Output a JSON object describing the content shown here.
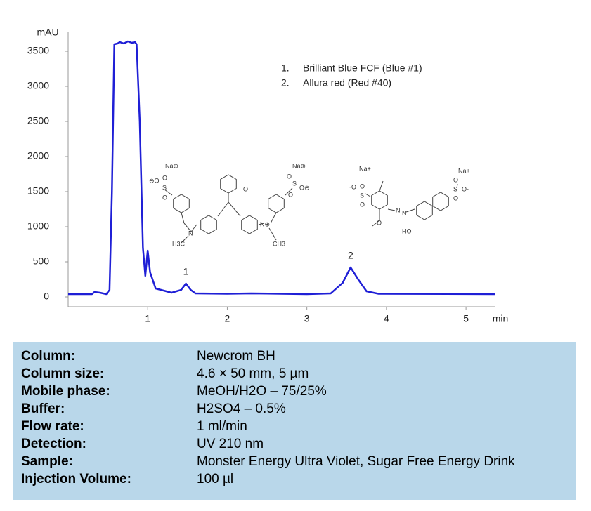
{
  "chart_data": {
    "type": "line",
    "ylabel": "mAU",
    "xlabel": "min",
    "x": [
      0,
      0.3,
      0.33,
      0.4,
      0.48,
      0.52,
      0.55,
      0.58,
      0.62,
      0.65,
      0.7,
      0.75,
      0.8,
      0.84,
      0.86,
      0.9,
      0.94,
      0.97,
      1.0,
      1.03,
      1.1,
      1.3,
      1.42,
      1.48,
      1.54,
      1.6,
      2.0,
      2.3,
      3.0,
      3.3,
      3.45,
      3.55,
      3.65,
      3.75,
      3.9,
      5.37
    ],
    "values": [
      40,
      40,
      70,
      60,
      40,
      100,
      1500,
      3600,
      3610,
      3630,
      3610,
      3640,
      3620,
      3630,
      3600,
      2500,
      700,
      300,
      660,
      350,
      120,
      60,
      100,
      190,
      100,
      50,
      45,
      50,
      40,
      50,
      200,
      420,
      240,
      80,
      45,
      40
    ],
    "color": "#1f1fd6",
    "xlim": [
      0,
      5.37
    ],
    "xticks": [
      1,
      2,
      3,
      4,
      5
    ],
    "ylim": [
      -140,
      3780
    ],
    "yticks": [
      0,
      500,
      1000,
      1500,
      2000,
      2500,
      3000,
      3500
    ],
    "peaks": [
      {
        "label": "1",
        "x": 1.48
      },
      {
        "label": "2",
        "x": 3.55
      }
    ],
    "compounds": [
      {
        "number": "1.",
        "name": "Brilliant Blue FCF (Blue #1)"
      },
      {
        "number": "2.",
        "name": "Allura  red (Red #40)"
      }
    ]
  },
  "structures": [
    {
      "labels": [
        "Na⊕",
        "⊖O",
        "S",
        "O",
        "O",
        "N",
        "H3C",
        "Na⊕",
        "O",
        "S",
        "O",
        "O⊖",
        "O",
        "N⊕",
        "CH3"
      ]
    },
    {
      "labels": [
        "Na+",
        "-O",
        "S",
        "O",
        "O",
        "N",
        "N",
        "O",
        "HO",
        "Na+",
        "S",
        "O-",
        "O",
        "O"
      ]
    }
  ],
  "table": {
    "rows": [
      [
        "Column:",
        "Newcrom BH"
      ],
      [
        "Column size:",
        "4.6 × 50 mm, 5 µm"
      ],
      [
        "Mobile phase:",
        "MeOH/H2O – 75/25%"
      ],
      [
        "Buffer:",
        "H2SO4  – 0.5%"
      ],
      [
        "Flow rate:",
        "1 ml/min"
      ],
      [
        "Detection:",
        "UV 210 nm"
      ],
      [
        "Sample:",
        "Monster Energy Ultra Violet, Sugar Free Energy Drink"
      ],
      [
        "Injection Volume:",
        "100 µl"
      ]
    ]
  }
}
